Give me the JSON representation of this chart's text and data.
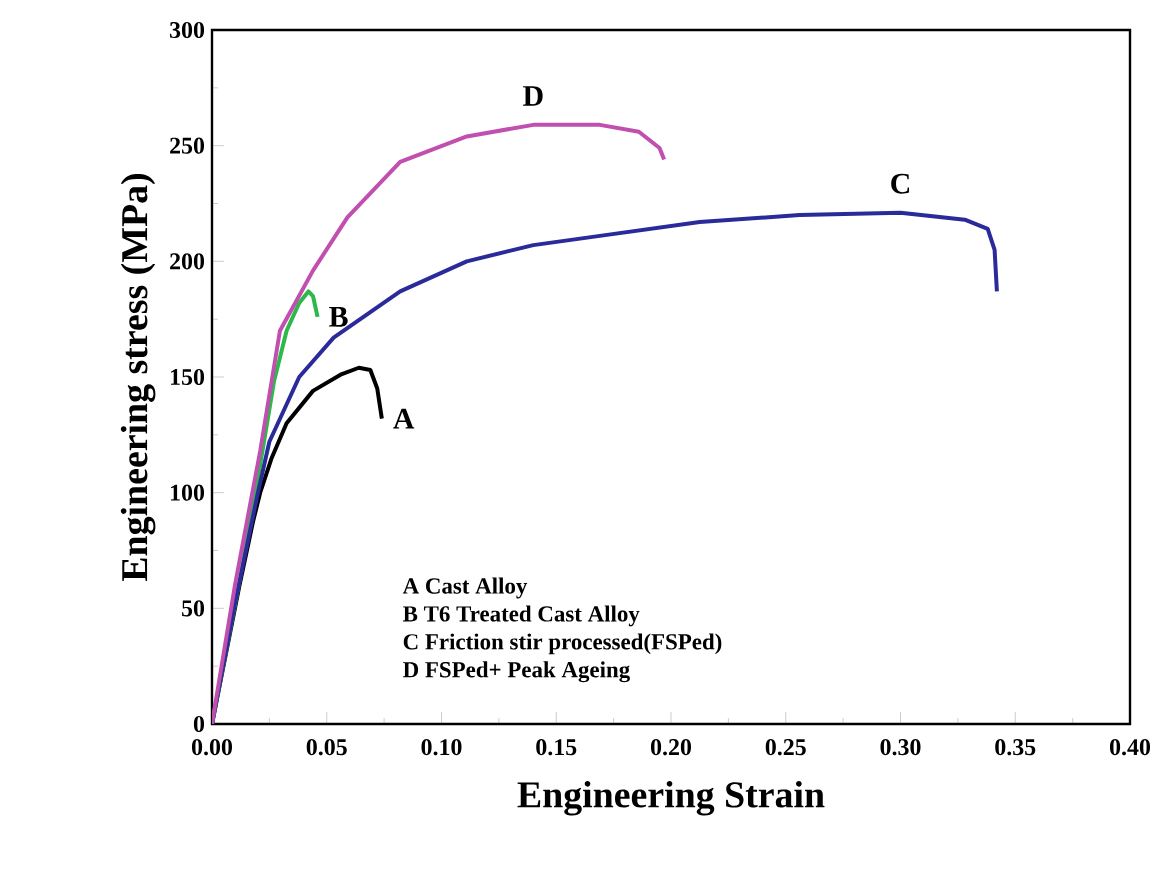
{
  "chart_data": {
    "type": "line",
    "xlabel": "Engineering Strain",
    "ylabel": "Engineering stress (MPa)",
    "xlim": [
      0,
      0.4
    ],
    "ylim": [
      0,
      300
    ],
    "xticks": [
      {
        "value": 0,
        "label": "0.00"
      },
      {
        "value": 0.05,
        "label": "0.05"
      },
      {
        "value": 0.1,
        "label": "0.10"
      },
      {
        "value": 0.15,
        "label": "0.15"
      },
      {
        "value": 0.2,
        "label": "0.20"
      },
      {
        "value": 0.25,
        "label": "0.25"
      },
      {
        "value": 0.3,
        "label": "0.30"
      },
      {
        "value": 0.35,
        "label": "0.35"
      },
      {
        "value": 0.4,
        "label": "0.40"
      }
    ],
    "yticks": [
      0,
      50,
      100,
      150,
      200,
      250,
      300
    ],
    "legend": false,
    "series": [
      {
        "name": "A",
        "color": "#000000",
        "x": [
          0,
          0.006,
          0.012,
          0.018,
          0.021,
          0.026,
          0.0325,
          0.044,
          0.056,
          0.064,
          0.069,
          0.072,
          0.074
        ],
        "values": [
          0,
          30,
          60,
          88,
          100,
          115,
          130,
          144,
          151,
          154,
          153,
          145,
          132
        ]
      },
      {
        "name": "B",
        "color": "#2db84a",
        "x": [
          0,
          0.012,
          0.018,
          0.022,
          0.027,
          0.0325,
          0.038,
          0.042,
          0.044,
          0.046
        ],
        "values": [
          0,
          62,
          95,
          118,
          148,
          170,
          182,
          187,
          185,
          176
        ]
      },
      {
        "name": "C",
        "color": "#2a2a9a",
        "x": [
          0,
          0.01,
          0.02,
          0.025,
          0.038,
          0.053,
          0.082,
          0.111,
          0.14,
          0.169,
          0.2125,
          0.256,
          0.3,
          0.328,
          0.338,
          0.341,
          0.342
        ],
        "values": [
          0,
          52,
          100,
          122,
          150,
          167,
          187,
          200,
          207,
          211,
          217,
          220,
          221,
          218,
          214,
          205,
          187
        ]
      },
      {
        "name": "D",
        "color": "#c04fb0",
        "x": [
          0,
          0.01,
          0.021,
          0.0296,
          0.044,
          0.059,
          0.082,
          0.111,
          0.14,
          0.169,
          0.186,
          0.195,
          0.197
        ],
        "values": [
          0,
          60,
          118,
          170,
          196,
          219,
          243,
          254,
          259,
          259,
          256,
          249,
          244
        ]
      }
    ],
    "annotations": [
      "A  Cast Alloy",
      "B  T6 Treated Cast Alloy",
      "C  Friction stir processed(FSPed)",
      "D  FSPed+ Peak Ageing"
    ]
  }
}
